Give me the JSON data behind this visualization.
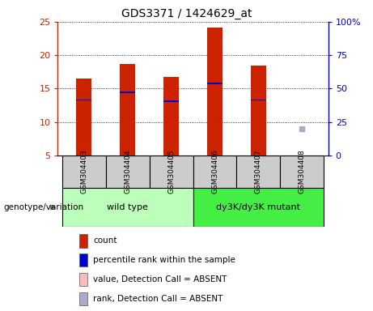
{
  "title": "GDS3371 / 1424629_at",
  "samples": [
    "GSM304403",
    "GSM304404",
    "GSM304405",
    "GSM304406",
    "GSM304407",
    "GSM304408"
  ],
  "count_values": [
    16.5,
    18.7,
    16.8,
    24.1,
    18.4,
    null
  ],
  "rank_values": [
    13.3,
    14.4,
    13.1,
    15.8,
    13.3,
    null
  ],
  "absent_rank": 9.0,
  "absent_rank_sample_idx": 5,
  "ylim_left": [
    5,
    25
  ],
  "ylim_right": [
    0,
    100
  ],
  "yticks_left": [
    5,
    10,
    15,
    20,
    25
  ],
  "yticks_right": [
    0,
    25,
    50,
    75,
    100
  ],
  "ytick_labels_right": [
    "0",
    "25",
    "50",
    "75",
    "100%"
  ],
  "bar_color": "#cc2200",
  "rank_color": "#0000cc",
  "absent_value_color": "#ffbbbb",
  "absent_rank_color": "#aaaacc",
  "groups": [
    {
      "label": "wild type",
      "samples": [
        0,
        1,
        2
      ],
      "color": "#bbffbb"
    },
    {
      "label": "dy3K/dy3K mutant",
      "samples": [
        3,
        4,
        5
      ],
      "color": "#44ee44"
    }
  ],
  "group_label": "genotype/variation",
  "legend_items": [
    {
      "color": "#cc2200",
      "label": "count"
    },
    {
      "color": "#0000cc",
      "label": "percentile rank within the sample"
    },
    {
      "color": "#ffbbbb",
      "label": "value, Detection Call = ABSENT"
    },
    {
      "color": "#aaaacc",
      "label": "rank, Detection Call = ABSENT"
    }
  ],
  "bar_width": 0.35,
  "grid_color": "black",
  "label_area_color": "#cccccc",
  "left_axis_color": "#cc2200",
  "right_axis_color": "#0000cc"
}
